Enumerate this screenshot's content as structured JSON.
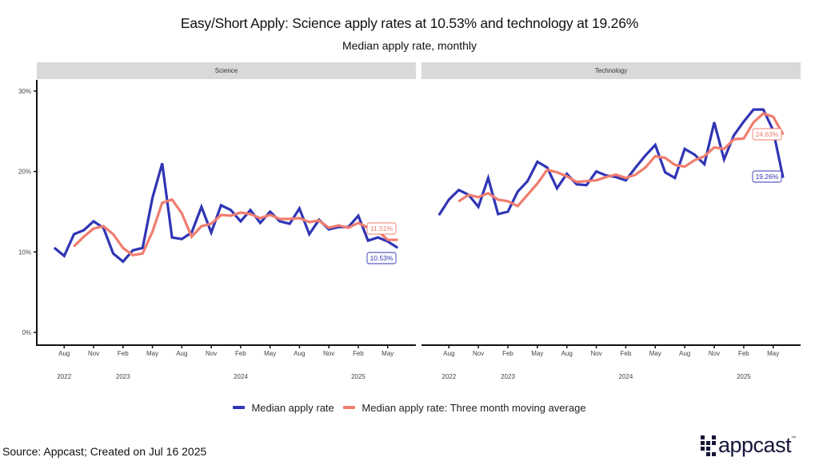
{
  "header": {
    "title": "Easy/Short Apply: Science apply rates at 10.53% and technology at 19.26%",
    "subtitle": "Median apply rate, monthly"
  },
  "legend": {
    "items": [
      {
        "label": "Median apply rate",
        "color": "#3035b5"
      },
      {
        "label": "Median apply rate: Three month moving average",
        "color": "#f07d6e"
      }
    ]
  },
  "footer": {
    "source": "Source: Appcast; Created on Jul 16 2025",
    "logo_text": "appcast",
    "logo_tm": "™"
  },
  "chart_data": [
    {
      "type": "line",
      "panel": "Science",
      "title": "Science",
      "xlabel": "",
      "ylabel": "",
      "ylim": [
        0,
        30
      ],
      "yticks": [
        "0%",
        "10%",
        "20%",
        "30%"
      ],
      "ytick_values": [
        0,
        10,
        20,
        30
      ],
      "x_start": "2022-07",
      "x_end": "2025-06",
      "xticks_month": [
        "Aug",
        "Nov",
        "Feb",
        "May",
        "Aug",
        "Nov",
        "Feb",
        "May",
        "Aug",
        "Nov",
        "Feb",
        "May"
      ],
      "xticks_year": [
        "2022",
        "2023",
        "2024",
        "2025"
      ],
      "grid": false,
      "x": [
        "2022-07",
        "2022-08",
        "2022-09",
        "2022-10",
        "2022-11",
        "2022-12",
        "2023-01",
        "2023-02",
        "2023-03",
        "2023-04",
        "2023-05",
        "2023-06",
        "2023-07",
        "2023-08",
        "2023-09",
        "2023-10",
        "2023-11",
        "2023-12",
        "2024-01",
        "2024-02",
        "2024-03",
        "2024-04",
        "2024-05",
        "2024-06",
        "2024-07",
        "2024-08",
        "2024-09",
        "2024-10",
        "2024-11",
        "2024-12",
        "2025-01",
        "2025-02",
        "2025-03",
        "2025-04",
        "2025-05",
        "2025-06"
      ],
      "series": [
        {
          "name": "Median apply rate",
          "color": "#3035b5",
          "values": [
            10.5,
            9.5,
            12.2,
            12.7,
            13.8,
            13.0,
            9.8,
            8.8,
            10.2,
            10.5,
            16.7,
            21.0,
            11.8,
            11.6,
            12.4,
            15.6,
            12.4,
            15.8,
            15.2,
            13.8,
            15.2,
            13.6,
            15.0,
            13.8,
            13.5,
            15.4,
            12.2,
            14.0,
            12.8,
            13.1,
            13.1,
            14.5,
            11.4,
            11.8,
            11.3,
            10.53
          ],
          "end_label": "10.53%"
        },
        {
          "name": "Median apply rate: Three month moving average",
          "color": "#f07d6e",
          "values": [
            null,
            null,
            10.7,
            11.9,
            12.9,
            13.2,
            12.2,
            10.5,
            9.6,
            9.8,
            12.5,
            16.1,
            16.5,
            14.8,
            11.9,
            13.2,
            13.5,
            14.6,
            14.5,
            14.9,
            14.7,
            14.2,
            14.6,
            14.1,
            14.1,
            14.2,
            13.7,
            13.9,
            13.0,
            13.3,
            13.0,
            13.6,
            13.0,
            12.6,
            11.5,
            11.51
          ],
          "end_label": "11.51%"
        }
      ]
    },
    {
      "type": "line",
      "panel": "Technology",
      "title": "Technology",
      "xlabel": "",
      "ylabel": "",
      "ylim": [
        0,
        30
      ],
      "x_start": "2022-07",
      "x_end": "2025-06",
      "xticks_month": [
        "Aug",
        "Nov",
        "Feb",
        "May",
        "Aug",
        "Nov",
        "Feb",
        "May",
        "Aug",
        "Nov",
        "Feb",
        "May"
      ],
      "xticks_year": [
        "2022",
        "2023",
        "2024",
        "2025"
      ],
      "grid": false,
      "x": [
        "2022-07",
        "2022-08",
        "2022-09",
        "2022-10",
        "2022-11",
        "2022-12",
        "2023-01",
        "2023-02",
        "2023-03",
        "2023-04",
        "2023-05",
        "2023-06",
        "2023-07",
        "2023-08",
        "2023-09",
        "2023-10",
        "2023-11",
        "2023-12",
        "2024-01",
        "2024-02",
        "2024-03",
        "2024-04",
        "2024-05",
        "2024-06",
        "2024-07",
        "2024-08",
        "2024-09",
        "2024-10",
        "2024-11",
        "2024-12",
        "2025-01",
        "2025-02",
        "2025-03",
        "2025-04",
        "2025-05",
        "2025-06"
      ],
      "series": [
        {
          "name": "Median apply rate",
          "color": "#3035b5",
          "values": [
            14.6,
            16.5,
            17.7,
            17.1,
            15.6,
            19.2,
            14.7,
            15.0,
            17.5,
            18.8,
            21.2,
            20.5,
            17.9,
            19.7,
            18.4,
            18.3,
            20.0,
            19.5,
            19.3,
            18.9,
            20.5,
            22.0,
            23.3,
            19.9,
            19.2,
            22.8,
            22.1,
            20.9,
            26.1,
            21.5,
            24.5,
            26.2,
            27.7,
            27.7,
            25.1,
            19.26
          ],
          "end_label": "19.26%"
        },
        {
          "name": "Median apply rate: Three month moving average",
          "color": "#f07d6e",
          "values": [
            null,
            null,
            16.3,
            17.1,
            16.8,
            17.3,
            16.5,
            16.3,
            15.7,
            17.1,
            18.5,
            20.2,
            19.9,
            19.4,
            18.7,
            18.8,
            18.9,
            19.3,
            19.6,
            19.2,
            19.6,
            20.5,
            21.9,
            21.7,
            20.8,
            20.6,
            21.4,
            21.9,
            23.0,
            22.8,
            24.0,
            24.1,
            26.1,
            27.2,
            26.8,
            24.63
          ],
          "end_label": "24.63%"
        }
      ]
    }
  ]
}
